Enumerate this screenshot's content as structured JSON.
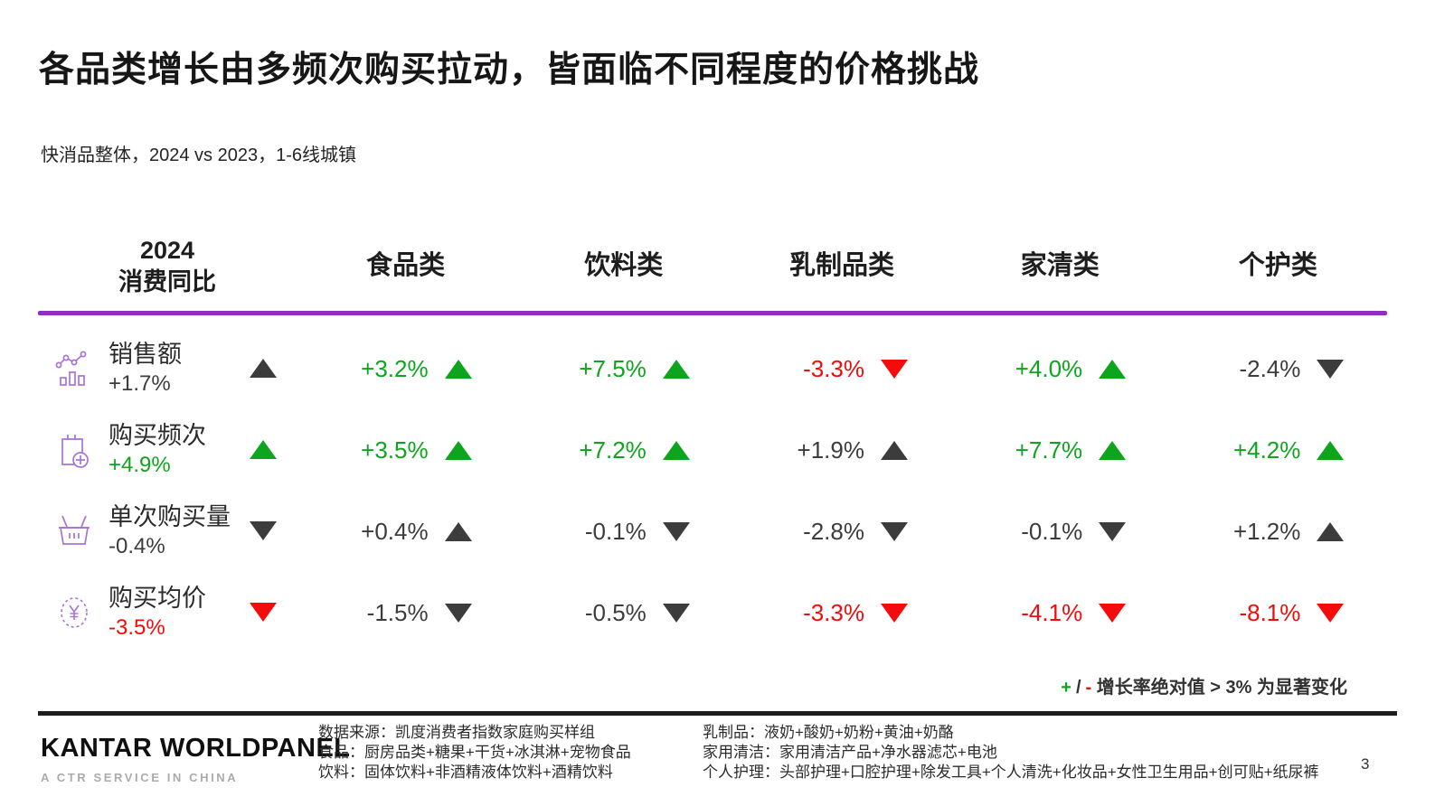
{
  "colors": {
    "accent_purple": "#8E2EC4",
    "positive_green": "#0EA51E",
    "negative_red": "#F40B0B",
    "neutral_dark": "#3C3C3C",
    "icon_purple": "#A873D8"
  },
  "slide": {
    "title": "各品类增长由多频次购买拉动，皆面临不同程度的价格挑战",
    "subtitle": "快消品整体，2024 vs 2023，1-6线城镇",
    "page_number": "3"
  },
  "table": {
    "header": {
      "metric_line1": "2024",
      "metric_line2": "消费同比",
      "categories": [
        "食品类",
        "饮料类",
        "乳制品类",
        "家清类",
        "个护类"
      ]
    },
    "rows": [
      {
        "icon": "sales-trend-icon",
        "label": "销售额",
        "overall": {
          "value": "+1.7%",
          "dir": "up",
          "color": "dark"
        },
        "cells": [
          {
            "value": "+3.2%",
            "dir": "up",
            "color": "green"
          },
          {
            "value": "+7.5%",
            "dir": "up",
            "color": "green"
          },
          {
            "value": "-3.3%",
            "dir": "down",
            "color": "red"
          },
          {
            "value": "+4.0%",
            "dir": "up",
            "color": "green"
          },
          {
            "value": "-2.4%",
            "dir": "down",
            "color": "dark"
          }
        ]
      },
      {
        "icon": "purchase-frequency-icon",
        "label": "购买频次",
        "overall": {
          "value": "+4.9%",
          "dir": "up",
          "color": "green"
        },
        "cells": [
          {
            "value": "+3.5%",
            "dir": "up",
            "color": "green"
          },
          {
            "value": "+7.2%",
            "dir": "up",
            "color": "green"
          },
          {
            "value": "+1.9%",
            "dir": "up",
            "color": "dark"
          },
          {
            "value": "+7.7%",
            "dir": "up",
            "color": "green"
          },
          {
            "value": "+4.2%",
            "dir": "up",
            "color": "green"
          }
        ]
      },
      {
        "icon": "basket-icon",
        "label": "单次购买量",
        "overall": {
          "value": "-0.4%",
          "dir": "down",
          "color": "dark"
        },
        "cells": [
          {
            "value": "+0.4%",
            "dir": "up",
            "color": "dark"
          },
          {
            "value": "-0.1%",
            "dir": "down",
            "color": "dark"
          },
          {
            "value": "-2.8%",
            "dir": "down",
            "color": "dark"
          },
          {
            "value": "-0.1%",
            "dir": "down",
            "color": "dark"
          },
          {
            "value": "+1.2%",
            "dir": "up",
            "color": "dark"
          }
        ]
      },
      {
        "icon": "average-price-icon",
        "label": "购买均价",
        "overall": {
          "value": "-3.5%",
          "dir": "down",
          "color": "red"
        },
        "cells": [
          {
            "value": "-1.5%",
            "dir": "down",
            "color": "dark"
          },
          {
            "value": "-0.5%",
            "dir": "down",
            "color": "dark"
          },
          {
            "value": "-3.3%",
            "dir": "down",
            "color": "red"
          },
          {
            "value": "-4.1%",
            "dir": "down",
            "color": "red"
          },
          {
            "value": "-8.1%",
            "dir": "down",
            "color": "red"
          }
        ]
      }
    ]
  },
  "note": {
    "plus": "+",
    "slash": "/",
    "minus": "-",
    "text": "增长率绝对值 > 3% 为显著变化"
  },
  "footer": {
    "logo_main": "KANTAR WORLDPANEL",
    "logo_sub": "A CTR SERVICE IN CHINA",
    "footnotes_left": [
      "数据来源：凯度消费者指数家庭购买样组",
      "食品：厨房品类+糖果+干货+冰淇淋+宠物食品",
      "饮料：固体饮料+非酒精液体饮料+酒精饮料"
    ],
    "footnotes_right": [
      "乳制品：液奶+酸奶+奶粉+黄油+奶酪",
      "家用清洁：家用清洁产品+净水器滤芯+电池",
      "个人护理：头部护理+口腔护理+除发工具+个人清洗+化妆品+女性卫生用品+创可贴+纸尿裤"
    ]
  },
  "chart_data": {
    "type": "table",
    "title": "各品类增长由多频次购买拉动，皆面临不同程度的价格挑战",
    "subtitle": "快消品整体，2024 vs 2023，1-6线城镇",
    "columns": [
      "2024消费同比(整体)",
      "食品类",
      "饮料类",
      "乳制品类",
      "家清类",
      "个护类"
    ],
    "rows": [
      {
        "metric": "销售额",
        "values_pct": [
          1.7,
          3.2,
          7.5,
          -3.3,
          4.0,
          -2.4
        ]
      },
      {
        "metric": "购买频次",
        "values_pct": [
          4.9,
          3.5,
          7.2,
          1.9,
          7.7,
          4.2
        ]
      },
      {
        "metric": "单次购买量",
        "values_pct": [
          -0.4,
          0.4,
          -0.1,
          -2.8,
          -0.1,
          1.2
        ]
      },
      {
        "metric": "购买均价",
        "values_pct": [
          -3.5,
          -1.5,
          -0.5,
          -3.3,
          -4.1,
          -8.1
        ]
      }
    ],
    "note": "+ / - 增长率绝对值 > 3% 为显著变化",
    "legend": "绿色=显著上升, 红色=显著下降, 深灰=非显著变化"
  }
}
